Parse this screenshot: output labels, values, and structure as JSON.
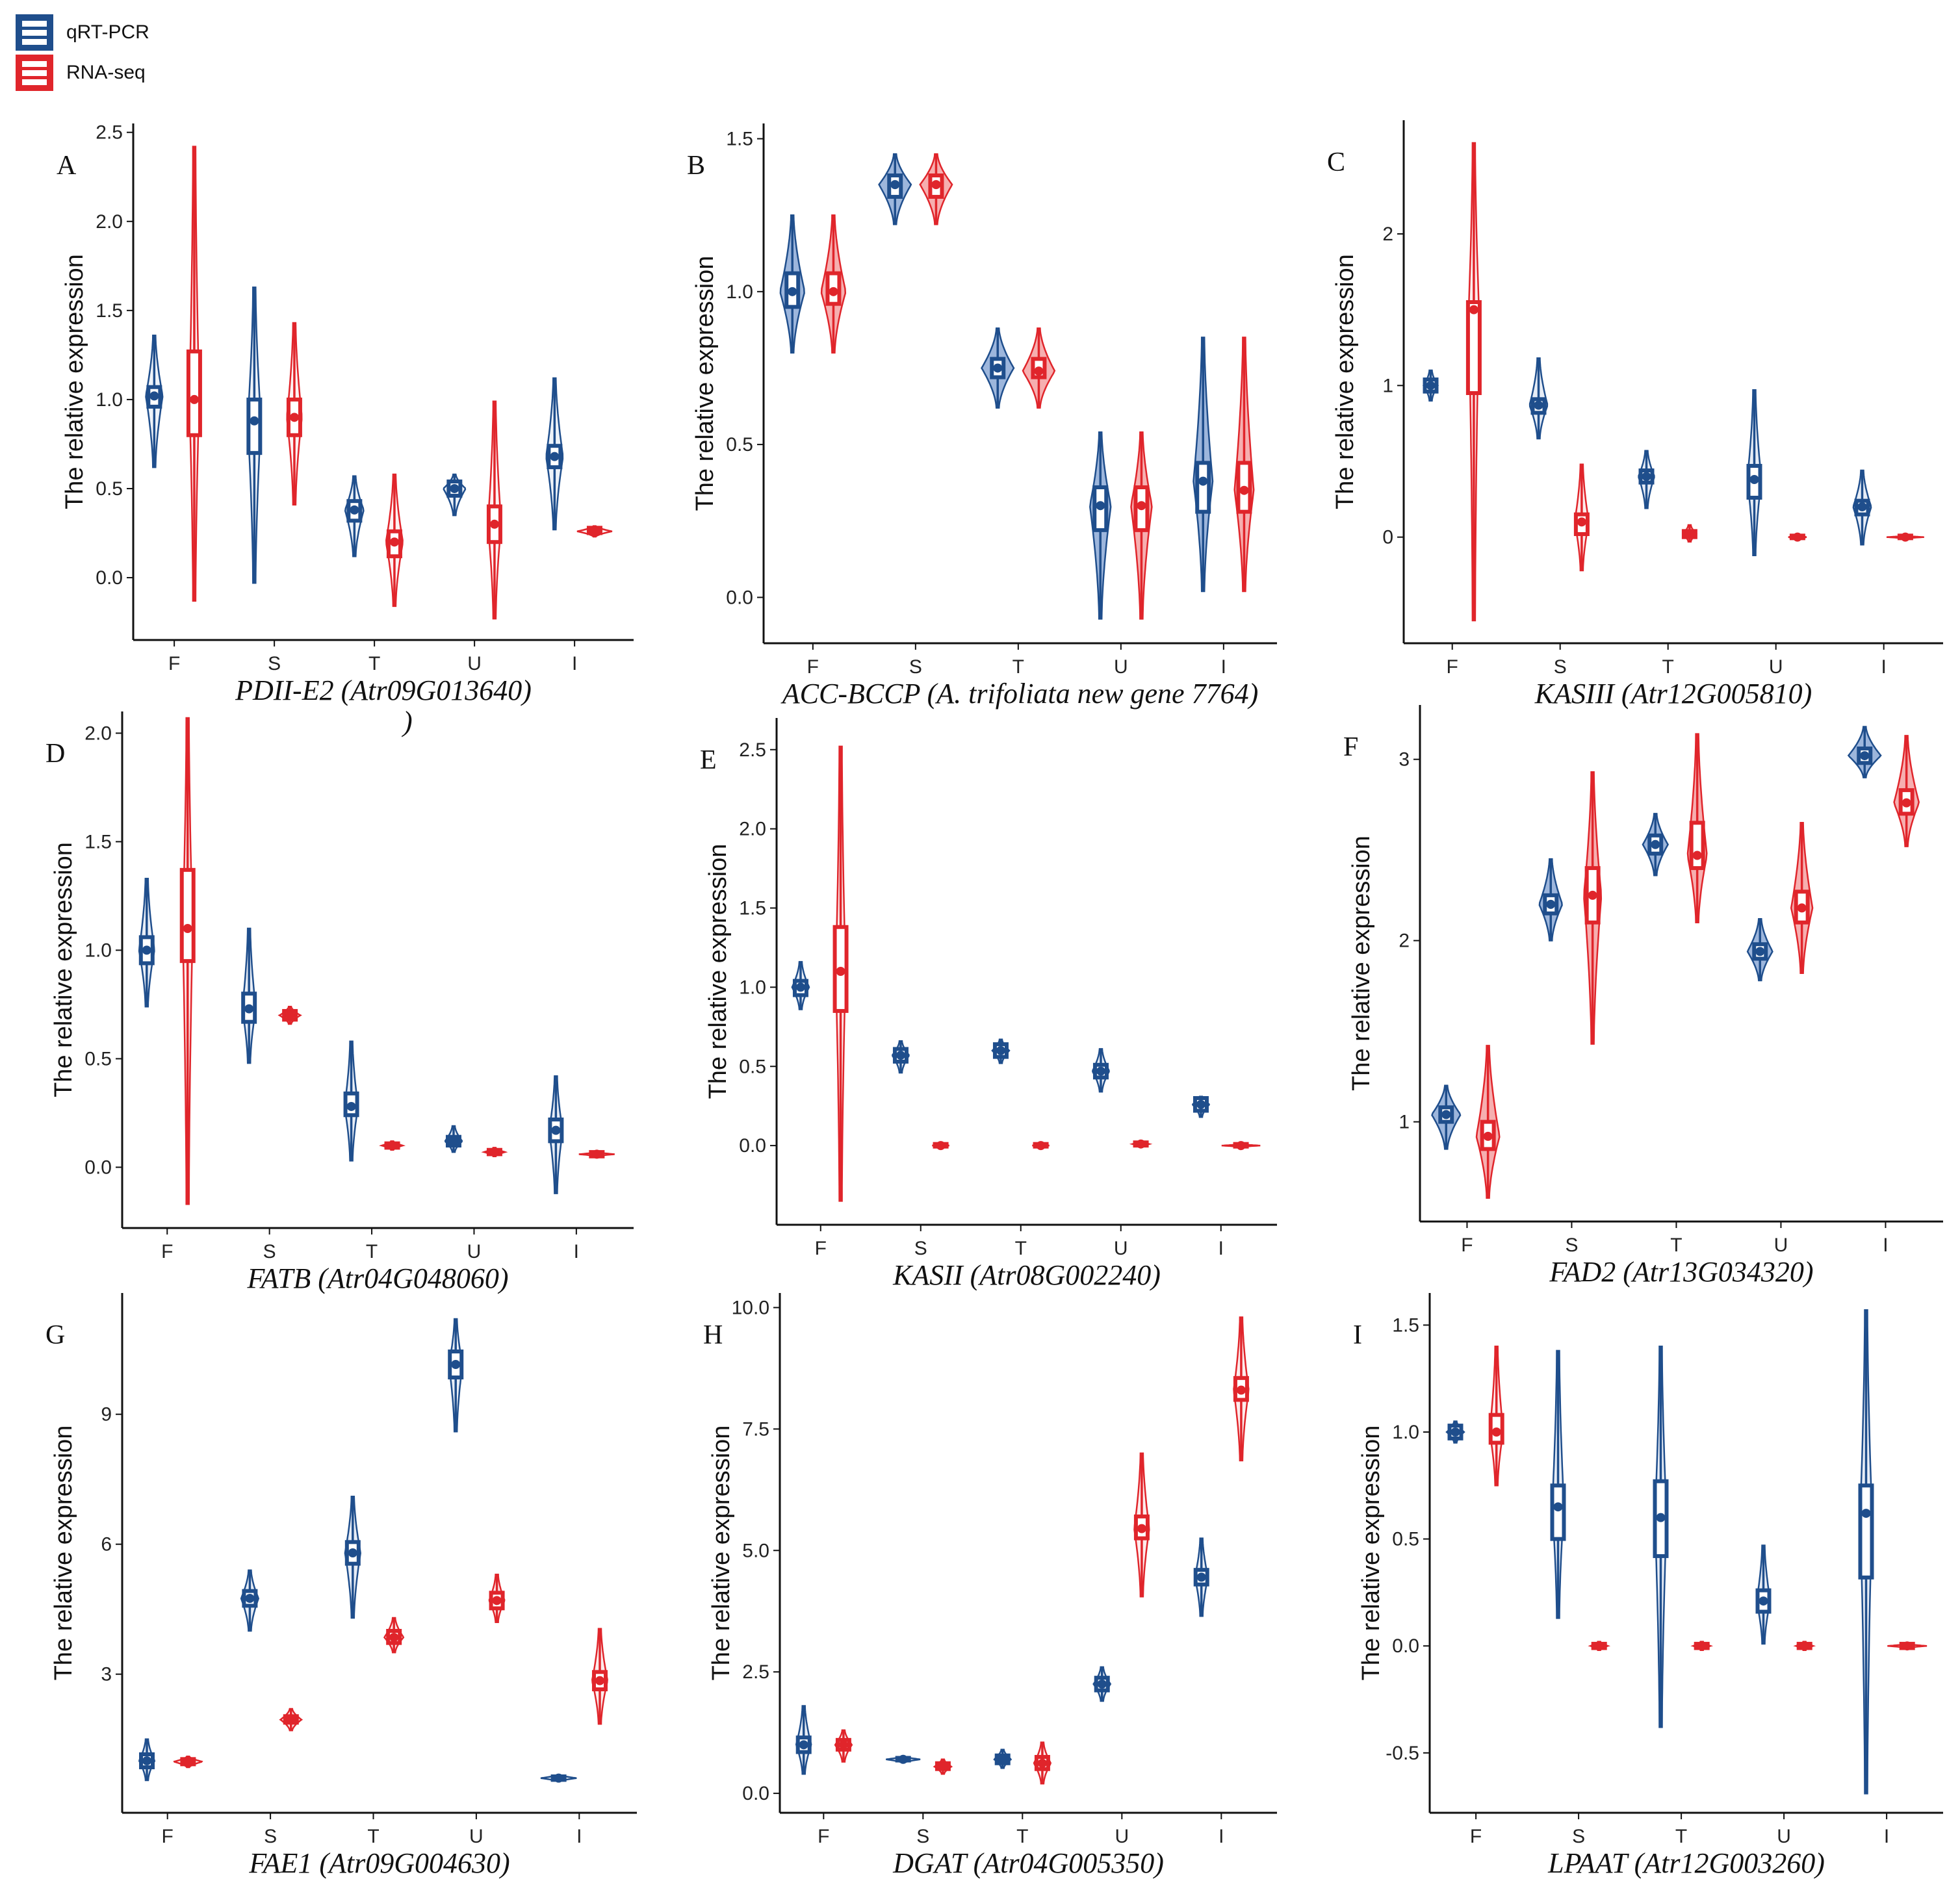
{
  "colors": {
    "qrt": "#1f4e8c",
    "qrt_fill": "#5b86c4",
    "rna": "#e0252b",
    "rna_fill": "#f07a7c"
  },
  "legend": {
    "items": [
      "qRT-PCR",
      "RNA-seq"
    ]
  },
  "ylabel": "The relative expression",
  "chart_data": [
    {
      "type": "violin",
      "panel": "A",
      "title": "PDII-E2 (Atr09G013640)",
      "stray_mark": ")",
      "categories": [
        "F",
        "S",
        "T",
        "U",
        "I"
      ],
      "yticks": [
        "0.0",
        "0.5",
        "1.0",
        "1.5",
        "2.0",
        "2.5"
      ],
      "ytick_values": [
        0,
        0.5,
        1,
        1.5,
        2,
        2.5
      ],
      "ylim": [
        -0.35,
        2.55
      ],
      "style": "violin",
      "fill_alpha": 0.1,
      "series": [
        {
          "name": "qRT-PCR",
          "medians": [
            1.02,
            0.88,
            0.38,
            0.5,
            0.68
          ],
          "q1": [
            0.96,
            0.7,
            0.32,
            0.46,
            0.62
          ],
          "q3": [
            1.07,
            1.0,
            0.43,
            0.54,
            0.74
          ],
          "min": [
            0.62,
            -0.03,
            0.12,
            0.35,
            0.27
          ],
          "max": [
            1.36,
            1.63,
            0.57,
            0.58,
            1.12
          ],
          "widths": [
            0.4,
            0.3,
            0.45,
            0.55,
            0.4
          ]
        },
        {
          "name": "RNA-seq",
          "medians": [
            1.0,
            0.9,
            0.2,
            0.3,
            0.26
          ],
          "q1": [
            0.8,
            0.8,
            0.12,
            0.2,
            0.25
          ],
          "q3": [
            1.27,
            1.0,
            0.26,
            0.4,
            0.28
          ],
          "min": [
            -0.13,
            0.41,
            -0.16,
            -0.23,
            0.23
          ],
          "max": [
            2.42,
            1.43,
            0.58,
            0.99,
            0.29
          ],
          "widths": [
            0.2,
            0.35,
            0.4,
            0.3,
            0.9
          ]
        }
      ]
    },
    {
      "type": "violin",
      "panel": "B",
      "title": "ACC-BCCP (A. trifoliata new gene 7764)",
      "categories": [
        "F",
        "S",
        "T",
        "U",
        "I"
      ],
      "yticks": [
        "0.0",
        "0.5",
        "1.0",
        "1.5"
      ],
      "ytick_values": [
        0,
        0.5,
        1,
        1.5
      ],
      "ylim": [
        -0.15,
        1.55
      ],
      "style": "violin",
      "fill_alpha": 0.6,
      "series": [
        {
          "name": "qRT-PCR",
          "medians": [
            1.0,
            1.35,
            0.75,
            0.3,
            0.38
          ],
          "q1": [
            0.95,
            1.31,
            0.72,
            0.22,
            0.28
          ],
          "q3": [
            1.06,
            1.38,
            0.78,
            0.36,
            0.44
          ],
          "min": [
            0.8,
            1.22,
            0.62,
            -0.07,
            0.02
          ],
          "max": [
            1.25,
            1.45,
            0.88,
            0.54,
            0.85
          ],
          "widths": [
            0.6,
            0.8,
            0.8,
            0.5,
            0.45
          ]
        },
        {
          "name": "RNA-seq",
          "medians": [
            1.0,
            1.35,
            0.74,
            0.3,
            0.35
          ],
          "q1": [
            0.96,
            1.31,
            0.72,
            0.22,
            0.28
          ],
          "q3": [
            1.06,
            1.38,
            0.78,
            0.36,
            0.44
          ],
          "min": [
            0.8,
            1.22,
            0.62,
            -0.07,
            0.02
          ],
          "max": [
            1.25,
            1.45,
            0.88,
            0.54,
            0.85
          ],
          "widths": [
            0.6,
            0.8,
            0.8,
            0.5,
            0.45
          ]
        }
      ]
    },
    {
      "type": "violin",
      "panel": "C",
      "title": "KASIII (Atr12G005810)",
      "categories": [
        "F",
        "S",
        "T",
        "U",
        "I"
      ],
      "yticks": [
        "0",
        "1",
        "2"
      ],
      "ytick_values": [
        0,
        1,
        2
      ],
      "ylim": [
        -0.7,
        2.75
      ],
      "style": "violin",
      "fill_alpha": 0.15,
      "series": [
        {
          "name": "qRT-PCR",
          "medians": [
            1.0,
            0.87,
            0.4,
            0.38,
            0.2
          ],
          "q1": [
            0.96,
            0.82,
            0.36,
            0.26,
            0.15
          ],
          "q3": [
            1.04,
            0.91,
            0.44,
            0.47,
            0.24
          ],
          "min": [
            0.9,
            0.65,
            0.19,
            -0.12,
            -0.05
          ],
          "max": [
            1.1,
            1.18,
            0.57,
            0.97,
            0.44
          ],
          "widths": [
            0.3,
            0.4,
            0.35,
            0.3,
            0.4
          ]
        },
        {
          "name": "RNA-seq",
          "medians": [
            1.5,
            0.1,
            0.02,
            0.0,
            0.0
          ],
          "q1": [
            0.95,
            0.02,
            0.0,
            0.0,
            0.0
          ],
          "q3": [
            1.55,
            0.15,
            0.04,
            0.01,
            0.01
          ],
          "min": [
            -0.55,
            -0.22,
            -0.03,
            -0.02,
            -0.01
          ],
          "max": [
            2.6,
            0.48,
            0.08,
            0.02,
            0.01
          ],
          "widths": [
            0.2,
            0.3,
            0.3,
            0.4,
            0.9
          ]
        }
      ]
    },
    {
      "type": "violin",
      "panel": "D",
      "title": "FATB (Atr04G048060)",
      "categories": [
        "F",
        "S",
        "T",
        "U",
        "I"
      ],
      "yticks": [
        "0.0",
        "0.5",
        "1.0",
        "1.5",
        "2.0"
      ],
      "ytick_values": [
        0,
        0.5,
        1,
        1.5,
        2
      ],
      "ylim": [
        -0.28,
        2.1
      ],
      "style": "violin",
      "fill_alpha": 0.15,
      "series": [
        {
          "name": "qRT-PCR",
          "medians": [
            1.0,
            0.73,
            0.28,
            0.12,
            0.17
          ],
          "q1": [
            0.94,
            0.67,
            0.24,
            0.1,
            0.12
          ],
          "q3": [
            1.06,
            0.8,
            0.34,
            0.14,
            0.22
          ],
          "min": [
            0.74,
            0.48,
            0.03,
            0.07,
            -0.12
          ],
          "max": [
            1.33,
            1.1,
            0.58,
            0.19,
            0.42
          ],
          "widths": [
            0.35,
            0.3,
            0.3,
            0.4,
            0.3
          ]
        },
        {
          "name": "RNA-seq",
          "medians": [
            1.1,
            0.7,
            0.1,
            0.07,
            0.06
          ],
          "q1": [
            0.95,
            0.68,
            0.09,
            0.06,
            0.05
          ],
          "q3": [
            1.37,
            0.72,
            0.11,
            0.08,
            0.07
          ],
          "min": [
            -0.17,
            0.66,
            0.08,
            0.05,
            0.05
          ],
          "max": [
            2.07,
            0.74,
            0.12,
            0.09,
            0.07
          ],
          "widths": [
            0.2,
            0.5,
            0.5,
            0.5,
            0.9
          ]
        }
      ]
    },
    {
      "type": "violin",
      "panel": "E",
      "title": "KASII (Atr08G002240)",
      "categories": [
        "F",
        "S",
        "T",
        "U",
        "I"
      ],
      "yticks": [
        "0.0",
        "0.5",
        "1.0",
        "1.5",
        "2.0",
        "2.5"
      ],
      "ytick_values": [
        0,
        0.5,
        1,
        1.5,
        2,
        2.5
      ],
      "ylim": [
        -0.5,
        2.7
      ],
      "style": "violin",
      "fill_alpha": 0.15,
      "series": [
        {
          "name": "qRT-PCR",
          "medians": [
            1.0,
            0.57,
            0.6,
            0.47,
            0.26
          ],
          "q1": [
            0.95,
            0.53,
            0.56,
            0.43,
            0.22
          ],
          "q3": [
            1.04,
            0.61,
            0.64,
            0.51,
            0.3
          ],
          "min": [
            0.86,
            0.46,
            0.52,
            0.34,
            0.18
          ],
          "max": [
            1.16,
            0.66,
            0.67,
            0.61,
            0.31
          ],
          "widths": [
            0.4,
            0.4,
            0.4,
            0.4,
            0.4
          ]
        },
        {
          "name": "RNA-seq",
          "medians": [
            1.1,
            0.0,
            0.0,
            0.01,
            0.0
          ],
          "q1": [
            0.85,
            0.0,
            0.0,
            0.0,
            0.0
          ],
          "q3": [
            1.38,
            0.01,
            0.01,
            0.02,
            0.01
          ],
          "min": [
            -0.35,
            -0.01,
            -0.01,
            -0.01,
            -0.01
          ],
          "max": [
            2.52,
            0.02,
            0.02,
            0.03,
            0.01
          ],
          "widths": [
            0.2,
            0.4,
            0.4,
            0.4,
            1.0
          ]
        }
      ]
    },
    {
      "type": "violin",
      "panel": "F",
      "title": "FAD2 (Atr13G034320)",
      "categories": [
        "F",
        "S",
        "T",
        "U",
        "I"
      ],
      "yticks": [
        "1",
        "2",
        "3"
      ],
      "ytick_values": [
        1,
        2,
        3
      ],
      "ylim": [
        0.45,
        3.3
      ],
      "style": "violin",
      "fill_alpha": 0.6,
      "series": [
        {
          "name": "qRT-PCR",
          "medians": [
            1.04,
            2.2,
            2.53,
            1.94,
            3.02
          ],
          "q1": [
            1.0,
            2.15,
            2.48,
            1.9,
            2.98
          ],
          "q3": [
            1.08,
            2.25,
            2.58,
            1.98,
            3.06
          ],
          "min": [
            0.85,
            2.0,
            2.36,
            1.78,
            2.9
          ],
          "max": [
            1.2,
            2.45,
            2.7,
            2.12,
            3.18
          ],
          "widths": [
            0.7,
            0.55,
            0.6,
            0.6,
            0.8
          ]
        },
        {
          "name": "RNA-seq",
          "medians": [
            0.92,
            2.25,
            2.47,
            2.18,
            2.76
          ],
          "q1": [
            0.85,
            2.1,
            2.4,
            2.1,
            2.7
          ],
          "q3": [
            1.0,
            2.4,
            2.65,
            2.27,
            2.83
          ],
          "min": [
            0.58,
            1.43,
            2.1,
            1.82,
            2.52
          ],
          "max": [
            1.42,
            2.93,
            3.14,
            2.65,
            3.13
          ],
          "widths": [
            0.55,
            0.4,
            0.45,
            0.5,
            0.6
          ]
        }
      ]
    },
    {
      "type": "violin",
      "panel": "G",
      "title": "FAE1 (Atr09G004630)",
      "categories": [
        "F",
        "S",
        "T",
        "U",
        "I"
      ],
      "yticks": [
        "3",
        "6",
        "9"
      ],
      "ytick_values": [
        3,
        6,
        9
      ],
      "ylim": [
        -0.2,
        11.8
      ],
      "style": "violin",
      "fill_alpha": 0.15,
      "series": [
        {
          "name": "qRT-PCR",
          "medians": [
            1.0,
            4.75,
            5.8,
            10.15,
            0.6
          ],
          "q1": [
            0.85,
            4.58,
            5.55,
            9.85,
            0.56
          ],
          "q3": [
            1.15,
            4.92,
            6.05,
            10.45,
            0.64
          ],
          "min": [
            0.55,
            4.0,
            4.3,
            8.6,
            0.52
          ],
          "max": [
            1.5,
            5.4,
            7.1,
            11.2,
            0.68
          ],
          "widths": [
            0.35,
            0.4,
            0.35,
            0.3,
            0.9
          ]
        },
        {
          "name": "RNA-seq",
          "medians": [
            0.98,
            1.95,
            3.85,
            4.7,
            2.85
          ],
          "q1": [
            0.92,
            1.88,
            3.72,
            4.52,
            2.65
          ],
          "q3": [
            1.04,
            2.03,
            4.0,
            4.88,
            3.05
          ],
          "min": [
            0.85,
            1.7,
            3.5,
            4.2,
            1.85
          ],
          "max": [
            1.1,
            2.2,
            4.3,
            5.3,
            4.05
          ],
          "widths": [
            0.7,
            0.5,
            0.45,
            0.35,
            0.35
          ]
        }
      ]
    },
    {
      "type": "violin",
      "panel": "H",
      "title": "DGAT (Atr04G005350)",
      "categories": [
        "F",
        "S",
        "T",
        "U",
        "I"
      ],
      "yticks": [
        "0.0",
        "2.5",
        "5.0",
        "7.5",
        "10.0"
      ],
      "ytick_values": [
        0,
        2.5,
        5,
        7.5,
        10
      ],
      "ylim": [
        -0.4,
        10.3
      ],
      "style": "violin",
      "fill_alpha": 0.15,
      "series": [
        {
          "name": "qRT-PCR",
          "medians": [
            1.0,
            0.7,
            0.7,
            2.25,
            4.45
          ],
          "q1": [
            0.85,
            0.68,
            0.62,
            2.12,
            4.3
          ],
          "q3": [
            1.15,
            0.73,
            0.78,
            2.38,
            4.6
          ],
          "min": [
            0.4,
            0.63,
            0.52,
            1.9,
            3.65
          ],
          "max": [
            1.8,
            0.76,
            0.9,
            2.6,
            5.25
          ],
          "widths": [
            0.35,
            0.9,
            0.4,
            0.4,
            0.3
          ]
        },
        {
          "name": "RNA-seq",
          "medians": [
            1.0,
            0.55,
            0.62,
            5.45,
            8.3
          ],
          "q1": [
            0.9,
            0.5,
            0.5,
            5.25,
            8.1
          ],
          "q3": [
            1.1,
            0.62,
            0.75,
            5.7,
            8.55
          ],
          "min": [
            0.65,
            0.4,
            0.2,
            4.05,
            6.85
          ],
          "max": [
            1.3,
            0.7,
            1.05,
            7.0,
            9.8
          ],
          "widths": [
            0.4,
            0.4,
            0.4,
            0.35,
            0.35
          ]
        }
      ]
    },
    {
      "type": "violin",
      "panel": "I",
      "title": "LPAAT (Atr12G003260)",
      "categories": [
        "F",
        "S",
        "T",
        "U",
        "I"
      ],
      "yticks": [
        "-0.5",
        "0.0",
        "0.5",
        "1.0",
        "1.5"
      ],
      "ytick_values": [
        -0.5,
        0,
        0.5,
        1,
        1.5
      ],
      "ylim": [
        -0.78,
        1.65
      ],
      "style": "violin",
      "fill_alpha": 0.15,
      "series": [
        {
          "name": "qRT-PCR",
          "medians": [
            1.0,
            0.65,
            0.6,
            0.21,
            0.62
          ],
          "q1": [
            0.97,
            0.5,
            0.42,
            0.16,
            0.32
          ],
          "q3": [
            1.03,
            0.75,
            0.77,
            0.26,
            0.75
          ],
          "min": [
            0.95,
            0.13,
            -0.38,
            0.01,
            -0.69
          ],
          "max": [
            1.05,
            1.38,
            1.4,
            0.47,
            1.57
          ],
          "widths": [
            0.4,
            0.25,
            0.25,
            0.3,
            0.25
          ]
        },
        {
          "name": "RNA-seq",
          "medians": [
            1.0,
            0.0,
            0.0,
            0.0,
            0.0
          ],
          "q1": [
            0.95,
            -0.01,
            -0.01,
            -0.01,
            -0.01
          ],
          "q3": [
            1.08,
            0.01,
            0.01,
            0.01,
            0.01
          ],
          "min": [
            0.75,
            -0.02,
            -0.02,
            -0.02,
            -0.01
          ],
          "max": [
            1.4,
            0.02,
            0.02,
            0.02,
            0.01
          ],
          "widths": [
            0.3,
            0.4,
            0.4,
            0.4,
            1.0
          ]
        }
      ]
    }
  ]
}
